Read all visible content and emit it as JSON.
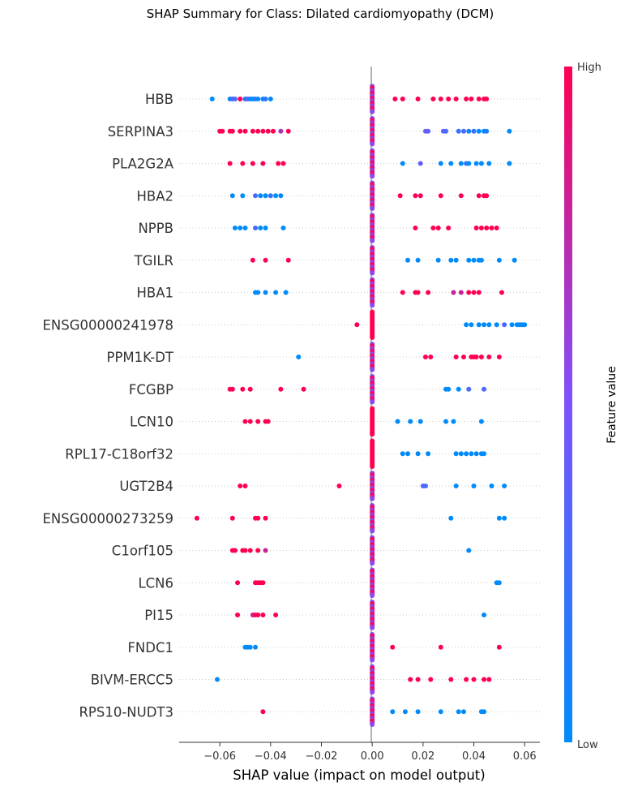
{
  "chart_data": {
    "type": "scatter",
    "subtype": "shap-beeswarm",
    "title": "SHAP Summary for Class: Dilated cardiomyopathy (DCM)",
    "xlabel": "SHAP value (impact on model output)",
    "xlim": [
      -0.076,
      0.066
    ],
    "xticks": [
      -0.06,
      -0.04,
      -0.02,
      0.0,
      0.02,
      0.04,
      0.06
    ],
    "xtick_labels": [
      "−0.06",
      "−0.04",
      "−0.02",
      "0.00",
      "0.02",
      "0.04",
      "0.06"
    ],
    "colorbar": {
      "label": "Feature value",
      "high_label": "High",
      "low_label": "Low",
      "low_color": "#008bfb",
      "mid_color": "#7c52ff",
      "high_color": "#ff0051"
    },
    "features": [
      {
        "name": "HBB",
        "points": [
          [
            -0.063,
            0
          ],
          [
            -0.056,
            0
          ],
          [
            -0.055,
            0.3
          ],
          [
            -0.054,
            0.3
          ],
          [
            -0.052,
            1
          ],
          [
            -0.05,
            0
          ],
          [
            -0.049,
            0.5
          ],
          [
            -0.048,
            0
          ],
          [
            -0.047,
            0
          ],
          [
            -0.046,
            0.2
          ],
          [
            -0.045,
            0
          ],
          [
            -0.043,
            0
          ],
          [
            -0.042,
            0.2
          ],
          [
            -0.04,
            0
          ],
          [
            0.009,
            1
          ],
          [
            0.012,
            1
          ],
          [
            0.018,
            1
          ],
          [
            0.024,
            1
          ],
          [
            0.027,
            1
          ],
          [
            0.03,
            1
          ],
          [
            0.033,
            1
          ],
          [
            0.037,
            1
          ],
          [
            0.039,
            1
          ],
          [
            0.042,
            1
          ],
          [
            0.044,
            1
          ],
          [
            0.045,
            1
          ]
        ],
        "zero_points": 16,
        "zero_mix": "mixed"
      },
      {
        "name": "SERPINA3",
        "points": [
          [
            -0.06,
            1
          ],
          [
            -0.059,
            1
          ],
          [
            -0.056,
            1
          ],
          [
            -0.055,
            1
          ],
          [
            -0.052,
            1
          ],
          [
            -0.05,
            1
          ],
          [
            -0.047,
            1
          ],
          [
            -0.045,
            1
          ],
          [
            -0.043,
            1
          ],
          [
            -0.041,
            1
          ],
          [
            -0.039,
            1
          ],
          [
            -0.036,
            0.7
          ],
          [
            -0.033,
            1
          ],
          [
            0.021,
            0.4
          ],
          [
            0.022,
            0.4
          ],
          [
            0.028,
            0.4
          ],
          [
            0.029,
            0.3
          ],
          [
            0.034,
            0.2
          ],
          [
            0.036,
            0.3
          ],
          [
            0.038,
            0.1
          ],
          [
            0.04,
            0.2
          ],
          [
            0.042,
            0
          ],
          [
            0.044,
            0
          ],
          [
            0.045,
            0.1
          ],
          [
            0.054,
            0
          ]
        ],
        "zero_points": 16,
        "zero_mix": "mixed"
      },
      {
        "name": "PLA2G2A",
        "points": [
          [
            -0.056,
            1
          ],
          [
            -0.051,
            1
          ],
          [
            -0.047,
            1
          ],
          [
            -0.043,
            1
          ],
          [
            -0.037,
            1
          ],
          [
            -0.035,
            1
          ],
          [
            0.012,
            0
          ],
          [
            0.019,
            0.4
          ],
          [
            0.027,
            0
          ],
          [
            0.031,
            0
          ],
          [
            0.035,
            0
          ],
          [
            0.037,
            0.2
          ],
          [
            0.038,
            0
          ],
          [
            0.041,
            0
          ],
          [
            0.043,
            0
          ],
          [
            0.046,
            0
          ],
          [
            0.054,
            0
          ]
        ],
        "zero_points": 16,
        "zero_mix": "mixed"
      },
      {
        "name": "HBA2",
        "points": [
          [
            -0.055,
            0
          ],
          [
            -0.051,
            0
          ],
          [
            -0.046,
            0.3
          ],
          [
            -0.044,
            0
          ],
          [
            -0.042,
            0
          ],
          [
            -0.04,
            0.2
          ],
          [
            -0.038,
            0
          ],
          [
            -0.036,
            0
          ],
          [
            0.011,
            1
          ],
          [
            0.017,
            1
          ],
          [
            0.019,
            1
          ],
          [
            0.027,
            1
          ],
          [
            0.035,
            1
          ],
          [
            0.042,
            1
          ],
          [
            0.044,
            1
          ],
          [
            0.045,
            1
          ]
        ],
        "zero_points": 16,
        "zero_mix": "mixed"
      },
      {
        "name": "NPPB",
        "points": [
          [
            -0.054,
            0
          ],
          [
            -0.052,
            0
          ],
          [
            -0.05,
            0
          ],
          [
            -0.046,
            0.3
          ],
          [
            -0.044,
            0
          ],
          [
            -0.042,
            0
          ],
          [
            -0.035,
            0
          ],
          [
            0.017,
            1
          ],
          [
            0.024,
            1
          ],
          [
            0.026,
            1
          ],
          [
            0.03,
            1
          ],
          [
            0.041,
            1
          ],
          [
            0.043,
            1
          ],
          [
            0.045,
            1
          ],
          [
            0.047,
            1
          ],
          [
            0.049,
            1
          ]
        ],
        "zero_points": 16,
        "zero_mix": "mixed"
      },
      {
        "name": "TGILR",
        "points": [
          [
            -0.047,
            1
          ],
          [
            -0.042,
            1
          ],
          [
            -0.033,
            1
          ],
          [
            0.014,
            0
          ],
          [
            0.018,
            0
          ],
          [
            0.026,
            0
          ],
          [
            0.031,
            0
          ],
          [
            0.033,
            0
          ],
          [
            0.038,
            0
          ],
          [
            0.04,
            0
          ],
          [
            0.042,
            0
          ],
          [
            0.043,
            0
          ],
          [
            0.05,
            0
          ],
          [
            0.056,
            0
          ]
        ],
        "zero_points": 16,
        "zero_mix": "mixed"
      },
      {
        "name": "HBA1",
        "points": [
          [
            -0.046,
            0
          ],
          [
            -0.045,
            0
          ],
          [
            -0.042,
            0
          ],
          [
            -0.038,
            0
          ],
          [
            -0.034,
            0
          ],
          [
            0.012,
            1
          ],
          [
            0.017,
            1
          ],
          [
            0.018,
            1
          ],
          [
            0.022,
            1
          ],
          [
            0.032,
            0.8
          ],
          [
            0.035,
            0.8
          ],
          [
            0.038,
            1
          ],
          [
            0.04,
            1
          ],
          [
            0.042,
            1
          ],
          [
            0.051,
            1
          ]
        ],
        "zero_points": 16,
        "zero_mix": "mixed"
      },
      {
        "name": "ENSG00000241978",
        "points": [
          [
            -0.006,
            1
          ],
          [
            0.037,
            0
          ],
          [
            0.039,
            0
          ],
          [
            0.042,
            0
          ],
          [
            0.044,
            0
          ],
          [
            0.046,
            0
          ],
          [
            0.049,
            0
          ],
          [
            0.052,
            0.3
          ],
          [
            0.055,
            0
          ],
          [
            0.057,
            0
          ],
          [
            0.058,
            0
          ],
          [
            0.059,
            0
          ],
          [
            0.06,
            0
          ]
        ],
        "zero_points": 16,
        "zero_mix": "high"
      },
      {
        "name": "PPM1K-DT",
        "points": [
          [
            -0.029,
            0
          ],
          [
            0.021,
            1
          ],
          [
            0.023,
            1
          ],
          [
            0.033,
            1
          ],
          [
            0.036,
            1
          ],
          [
            0.039,
            1
          ],
          [
            0.04,
            1
          ],
          [
            0.041,
            1
          ],
          [
            0.043,
            1
          ],
          [
            0.046,
            1
          ],
          [
            0.05,
            1
          ]
        ],
        "zero_points": 16,
        "zero_mix": "mixed"
      },
      {
        "name": "FCGBP",
        "points": [
          [
            -0.056,
            1
          ],
          [
            -0.055,
            1
          ],
          [
            -0.051,
            1
          ],
          [
            -0.048,
            1
          ],
          [
            -0.036,
            1
          ],
          [
            -0.027,
            1
          ],
          [
            0.029,
            0
          ],
          [
            0.03,
            0
          ],
          [
            0.034,
            0
          ],
          [
            0.038,
            0.3
          ],
          [
            0.044,
            0.3
          ]
        ],
        "zero_points": 16,
        "zero_mix": "mixed"
      },
      {
        "name": "LCN10",
        "points": [
          [
            -0.05,
            1
          ],
          [
            -0.048,
            1
          ],
          [
            -0.045,
            1
          ],
          [
            -0.042,
            1
          ],
          [
            -0.041,
            1
          ],
          [
            0.01,
            0
          ],
          [
            0.015,
            0
          ],
          [
            0.019,
            0
          ],
          [
            0.029,
            0
          ],
          [
            0.032,
            0
          ],
          [
            0.043,
            0
          ]
        ],
        "zero_points": 16,
        "zero_mix": "high"
      },
      {
        "name": "RPL17-C18orf32",
        "points": [
          [
            0.012,
            0
          ],
          [
            0.014,
            0
          ],
          [
            0.018,
            0
          ],
          [
            0.022,
            0
          ],
          [
            0.033,
            0
          ],
          [
            0.035,
            0
          ],
          [
            0.037,
            0
          ],
          [
            0.039,
            0
          ],
          [
            0.041,
            0
          ],
          [
            0.043,
            0
          ],
          [
            0.044,
            0
          ]
        ],
        "zero_points": 16,
        "zero_mix": "high"
      },
      {
        "name": "UGT2B4",
        "points": [
          [
            -0.052,
            1
          ],
          [
            -0.05,
            1
          ],
          [
            -0.013,
            1
          ],
          [
            0.02,
            0.3
          ],
          [
            0.021,
            0.3
          ],
          [
            0.033,
            0
          ],
          [
            0.04,
            0
          ],
          [
            0.047,
            0
          ],
          [
            0.052,
            0
          ]
        ],
        "zero_points": 16,
        "zero_mix": "mixed"
      },
      {
        "name": "ENSG00000273259",
        "points": [
          [
            -0.069,
            1
          ],
          [
            -0.055,
            1
          ],
          [
            -0.046,
            1
          ],
          [
            -0.045,
            1
          ],
          [
            -0.042,
            1
          ],
          [
            0.031,
            0
          ],
          [
            0.05,
            0
          ],
          [
            0.052,
            0
          ]
        ],
        "zero_points": 16,
        "zero_mix": "mixed"
      },
      {
        "name": "C1orf105",
        "points": [
          [
            -0.055,
            1
          ],
          [
            -0.054,
            1
          ],
          [
            -0.051,
            1
          ],
          [
            -0.05,
            1
          ],
          [
            -0.048,
            1
          ],
          [
            -0.045,
            1
          ],
          [
            -0.042,
            0.8
          ],
          [
            0.038,
            0
          ]
        ],
        "zero_points": 16,
        "zero_mix": "mixed"
      },
      {
        "name": "LCN6",
        "points": [
          [
            -0.053,
            1
          ],
          [
            -0.046,
            1
          ],
          [
            -0.045,
            1
          ],
          [
            -0.044,
            1
          ],
          [
            -0.043,
            1
          ],
          [
            0.049,
            0
          ],
          [
            0.05,
            0
          ]
        ],
        "zero_points": 16,
        "zero_mix": "mixed"
      },
      {
        "name": "PI15",
        "points": [
          [
            -0.053,
            1
          ],
          [
            -0.047,
            0.8
          ],
          [
            -0.046,
            1
          ],
          [
            -0.045,
            1
          ],
          [
            -0.043,
            1
          ],
          [
            -0.038,
            1
          ],
          [
            0.044,
            0
          ]
        ],
        "zero_points": 16,
        "zero_mix": "mixed"
      },
      {
        "name": "FNDC1",
        "points": [
          [
            -0.05,
            0
          ],
          [
            -0.049,
            0
          ],
          [
            -0.048,
            0
          ],
          [
            -0.046,
            0
          ],
          [
            0.008,
            1
          ],
          [
            0.027,
            1
          ],
          [
            0.05,
            1
          ]
        ],
        "zero_points": 16,
        "zero_mix": "mixed"
      },
      {
        "name": "BIVM-ERCC5",
        "points": [
          [
            -0.061,
            0
          ],
          [
            0.015,
            1
          ],
          [
            0.018,
            1
          ],
          [
            0.023,
            1
          ],
          [
            0.031,
            1
          ],
          [
            0.037,
            1
          ],
          [
            0.04,
            1
          ],
          [
            0.044,
            1
          ],
          [
            0.046,
            1
          ]
        ],
        "zero_points": 16,
        "zero_mix": "mixed"
      },
      {
        "name": "RPS10-NUDT3",
        "points": [
          [
            -0.043,
            1
          ],
          [
            0.008,
            0
          ],
          [
            0.013,
            0
          ],
          [
            0.018,
            0
          ],
          [
            0.027,
            0
          ],
          [
            0.034,
            0
          ],
          [
            0.036,
            0
          ],
          [
            0.043,
            0
          ],
          [
            0.044,
            0
          ]
        ],
        "zero_points": 16,
        "zero_mix": "mixed"
      }
    ]
  }
}
